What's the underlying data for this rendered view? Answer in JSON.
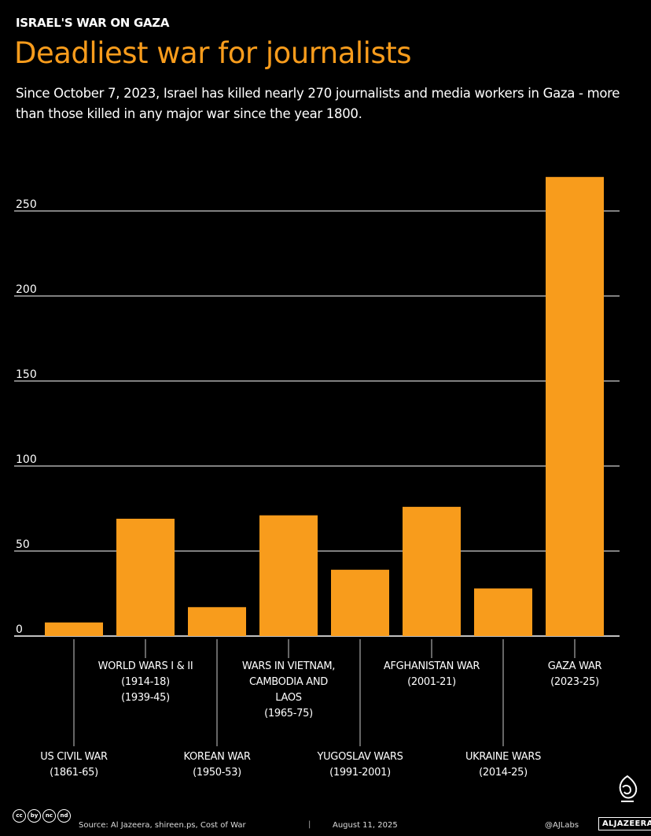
{
  "header": {
    "kicker": "ISRAEL'S WAR ON GAZA",
    "title": "Deadliest war for journalists",
    "subtitle": "Since October 7, 2023, Israel has killed nearly 270 journalists and media workers in Gaza - more than those killed in any major war since the year 1800."
  },
  "chart_data": {
    "type": "bar",
    "title": "Deadliest war for journalists",
    "categories": [
      [
        "US CIVIL WAR",
        "(1861-65)"
      ],
      [
        "WORLD WARS I & II",
        "(1914-18)",
        "(1939-45)"
      ],
      [
        "KOREAN WAR",
        "(1950-53)"
      ],
      [
        "WARS IN VIETNAM,",
        "CAMBODIA AND",
        "LAOS",
        "(1965-75)"
      ],
      [
        "YUGOSLAV WARS",
        "(1991-2001)"
      ],
      [
        "AFGHANISTAN WAR",
        "(2001-21)"
      ],
      [
        "UKRAINE WARS",
        "(2014-25)"
      ],
      [
        "GAZA WAR",
        "(2023-25)"
      ]
    ],
    "values": [
      8,
      69,
      17,
      71,
      39,
      76,
      28,
      270
    ],
    "label_position": [
      "low",
      "high",
      "low",
      "high",
      "low",
      "high",
      "low",
      "high"
    ],
    "yticks": [
      0,
      50,
      100,
      150,
      200,
      250
    ],
    "ylim": [
      0,
      270
    ],
    "grid": true,
    "bar_color": "#f89c1c",
    "grid_color": "#ffffff"
  },
  "footer": {
    "license_icons": [
      "cc",
      "by",
      "nc",
      "nd"
    ],
    "source": "Source: Al Jazeera, shireen.ps, Cost of War",
    "separator": "|",
    "date": "August 11, 2025",
    "handle": "@AJLabs",
    "brand": "ALJAZEERA",
    "logo": "al-jazeera-logo-icon"
  }
}
